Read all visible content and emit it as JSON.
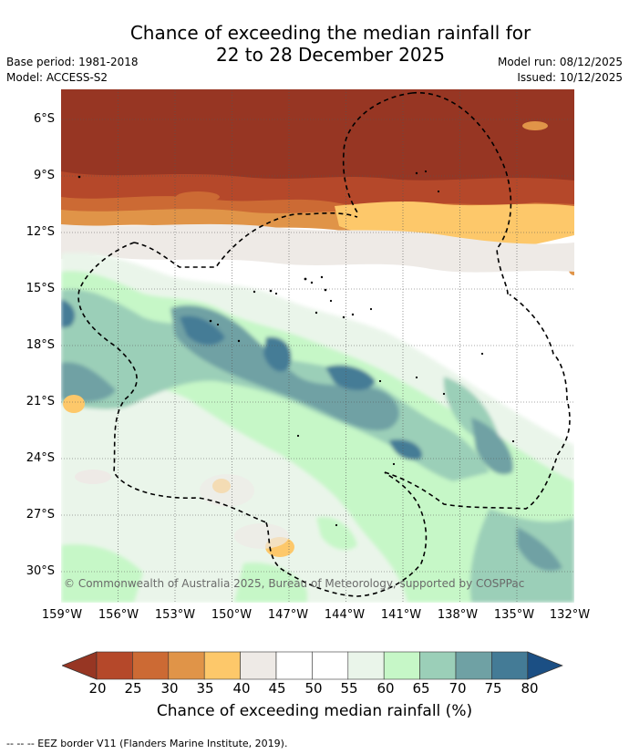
{
  "title_line1": "Chance of exceeding the median rainfall for",
  "title_line2": "22 to 28 December 2025",
  "base_period": "Base period: 1981-2018",
  "model": "Model: ACCESS-S2",
  "model_run": "Model run: 08/12/2025",
  "issued": "Issued: 10/12/2025",
  "lat_labels": [
    "6°S",
    "9°S",
    "12°S",
    "15°S",
    "18°S",
    "21°S",
    "24°S",
    "27°S",
    "30°S"
  ],
  "lon_labels": [
    "159°W",
    "156°W",
    "153°W",
    "150°W",
    "147°W",
    "144°W",
    "141°W",
    "138°W",
    "135°W",
    "132°W"
  ],
  "copyright": "© Commonwealth of Australia 2025, Bureau of Meteorology, supported by COSPPac",
  "colorbar": {
    "ticks": [
      "20",
      "25",
      "30",
      "35",
      "40",
      "45",
      "50",
      "55",
      "60",
      "65",
      "70",
      "75",
      "80"
    ],
    "colors": [
      "#973623",
      "#b5482a",
      "#cc6a34",
      "#e09448",
      "#fdc86a",
      "#eeeae6",
      "#ffffff",
      "#ffffff",
      "#eaf5ea",
      "#c6f7c7",
      "#9bcfb8",
      "#6fa1a4",
      "#447b96",
      "#1b4f84"
    ],
    "label": "Chance of exceeding median rainfall (%)"
  },
  "legend_note": "-- -- -- EEZ border V11 (Flanders Marine Institute, 2019)."
}
